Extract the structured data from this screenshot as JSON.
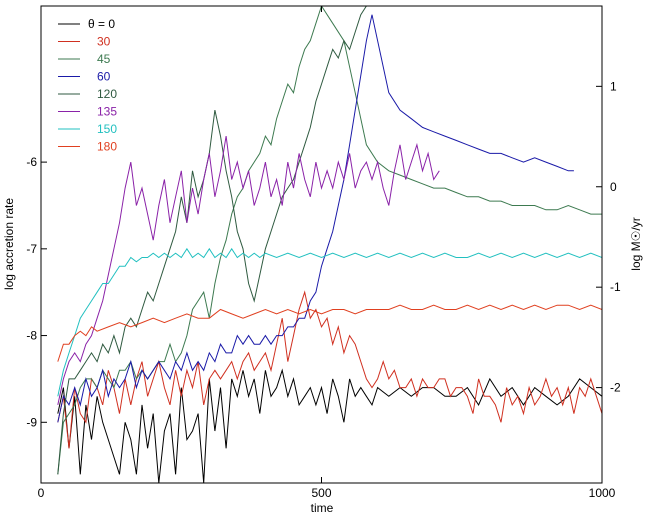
{
  "chart_data": {
    "type": "line",
    "xlabel": "time",
    "ylabel_left": "log accretion rate",
    "ylabel_right": "log M☉/yr",
    "xlim": [
      0,
      1000
    ],
    "ylim": [
      -9.7,
      -4.2
    ],
    "ylim_right": [
      -2.95,
      1.8
    ],
    "x_ticks": [
      0,
      500,
      1000
    ],
    "y_ticks": [
      -9,
      -8,
      -7,
      -6
    ],
    "y_ticks_right": [
      -2,
      -1,
      0,
      1
    ],
    "grid": false,
    "legend_position": "top-left",
    "legend_title": "θ = 0",
    "series": [
      {
        "name": "θ = 0",
        "color": "#000000",
        "x": [
          30,
          40,
          50,
          60,
          70,
          80,
          90,
          100,
          110,
          120,
          130,
          140,
          150,
          160,
          170,
          180,
          190,
          200,
          210,
          220,
          230,
          240,
          250,
          260,
          270,
          280,
          290,
          300,
          310,
          320,
          330,
          340,
          350,
          360,
          370,
          380,
          390,
          400,
          410,
          420,
          430,
          440,
          450,
          460,
          470,
          480,
          490,
          500,
          510,
          520,
          530,
          540,
          550,
          560,
          570,
          580,
          590,
          600,
          620,
          640,
          660,
          680,
          700,
          720,
          740,
          760,
          780,
          800,
          820,
          840,
          860,
          880,
          900,
          920,
          940,
          960,
          980,
          1000
        ],
        "values": [
          -8.9,
          -8.6,
          -9.3,
          -8.7,
          -9.6,
          -8.8,
          -9.2,
          -8.7,
          -9.0,
          -9.2,
          -9.4,
          -9.6,
          -9.0,
          -9.2,
          -9.6,
          -8.8,
          -9.3,
          -8.9,
          -9.7,
          -9.1,
          -8.9,
          -9.6,
          -8.6,
          -9.2,
          -9.1,
          -8.9,
          -9.7,
          -8.5,
          -9.1,
          -8.6,
          -9.3,
          -8.5,
          -8.7,
          -8.4,
          -8.7,
          -8.5,
          -8.9,
          -8.4,
          -8.7,
          -8.6,
          -8.4,
          -8.7,
          -8.5,
          -8.8,
          -8.7,
          -8.6,
          -8.8,
          -8.6,
          -8.9,
          -8.5,
          -8.7,
          -9.0,
          -8.5,
          -8.7,
          -8.6,
          -8.7,
          -8.8,
          -8.6,
          -8.7,
          -8.6,
          -8.7,
          -8.6,
          -8.6,
          -8.7,
          -8.7,
          -8.6,
          -8.8,
          -8.5,
          -8.7,
          -8.6,
          -8.8,
          -8.6,
          -8.7,
          -8.8,
          -8.7,
          -8.5,
          -8.6,
          -8.7
        ]
      },
      {
        "name": "30",
        "color": "#d03020",
        "x": [
          30,
          40,
          50,
          60,
          70,
          80,
          90,
          100,
          110,
          120,
          130,
          140,
          150,
          160,
          170,
          180,
          190,
          200,
          210,
          220,
          230,
          240,
          250,
          260,
          270,
          280,
          290,
          300,
          310,
          320,
          330,
          340,
          350,
          360,
          370,
          380,
          390,
          400,
          410,
          420,
          430,
          440,
          450,
          460,
          470,
          480,
          490,
          500,
          510,
          520,
          530,
          540,
          550,
          560,
          570,
          580,
          590,
          600,
          610,
          620,
          630,
          640,
          650,
          660,
          670,
          680,
          690,
          700,
          710,
          720,
          730,
          740,
          750,
          760,
          770,
          780,
          790,
          800,
          810,
          820,
          830,
          840,
          850,
          860,
          870,
          880,
          890,
          900,
          910,
          920,
          930,
          940,
          950,
          960,
          970,
          980,
          990,
          1000
        ],
        "values": [
          -9.0,
          -8.7,
          -9.3,
          -8.6,
          -8.9,
          -9.0,
          -8.5,
          -8.6,
          -8.8,
          -8.4,
          -8.6,
          -8.9,
          -8.5,
          -8.8,
          -8.5,
          -8.3,
          -8.7,
          -8.5,
          -8.3,
          -8.6,
          -8.8,
          -8.4,
          -8.7,
          -8.4,
          -8.6,
          -8.3,
          -8.8,
          -8.5,
          -8.4,
          -8.5,
          -8.4,
          -8.3,
          -8.5,
          -8.3,
          -8.2,
          -8.4,
          -8.3,
          -8.2,
          -8.4,
          -8.1,
          -7.8,
          -8.3,
          -8.0,
          -7.7,
          -7.5,
          -7.8,
          -7.7,
          -7.9,
          -7.8,
          -8.1,
          -7.9,
          -8.2,
          -8.0,
          -8.1,
          -8.3,
          -8.5,
          -8.6,
          -8.5,
          -8.3,
          -8.5,
          -8.4,
          -8.6,
          -8.6,
          -8.5,
          -8.7,
          -8.5,
          -8.6,
          -8.6,
          -8.5,
          -8.5,
          -8.7,
          -8.6,
          -8.6,
          -8.7,
          -8.9,
          -8.5,
          -8.7,
          -8.7,
          -8.8,
          -9.0,
          -8.6,
          -8.8,
          -8.7,
          -8.9,
          -8.6,
          -8.8,
          -8.7,
          -8.5,
          -8.7,
          -8.6,
          -8.8,
          -8.6,
          -8.9,
          -8.6,
          -8.7,
          -8.5,
          -8.7,
          -8.9
        ]
      },
      {
        "name": "45",
        "color": "#3d7a50",
        "x": [
          30,
          40,
          50,
          60,
          70,
          80,
          90,
          100,
          110,
          120,
          130,
          140,
          150,
          160,
          170,
          180,
          190,
          200,
          210,
          220,
          230,
          240,
          250,
          260,
          270,
          280,
          290,
          300,
          310,
          320,
          330,
          340,
          350,
          360,
          370,
          380,
          390,
          400,
          410,
          420,
          430,
          440,
          450,
          460,
          470,
          480,
          490,
          500,
          520,
          540,
          560,
          580,
          600,
          620,
          640,
          660,
          680,
          700,
          720,
          740,
          760,
          780,
          800,
          820,
          840,
          860,
          880,
          900,
          920,
          940,
          960,
          980,
          1000
        ],
        "values": [
          -9.6,
          -9.0,
          -8.9,
          -8.8,
          -8.6,
          -8.5,
          -8.5,
          -8.6,
          -8.4,
          -8.5,
          -8.6,
          -8.4,
          -8.4,
          -8.3,
          -8.5,
          -8.4,
          -8.5,
          -8.4,
          -8.3,
          -8.3,
          -8.1,
          -8.3,
          -8.2,
          -8.0,
          -7.7,
          -7.6,
          -7.5,
          -7.8,
          -7.4,
          -7.1,
          -6.9,
          -6.6,
          -6.4,
          -6.3,
          -6.1,
          -6.0,
          -5.9,
          -5.7,
          -5.8,
          -5.5,
          -5.3,
          -5.1,
          -5.2,
          -4.9,
          -4.7,
          -4.6,
          -4.4,
          -4.2,
          -4.4,
          -4.6,
          -5.2,
          -5.8,
          -6.0,
          -6.1,
          -6.15,
          -6.2,
          -6.25,
          -6.3,
          -6.3,
          -6.35,
          -6.4,
          -6.4,
          -6.45,
          -6.45,
          -6.5,
          -6.5,
          -6.5,
          -6.55,
          -6.55,
          -6.5,
          -6.55,
          -6.6,
          -6.6
        ]
      },
      {
        "name": "60",
        "color": "#1a1aa8",
        "x": [
          30,
          40,
          50,
          60,
          70,
          80,
          90,
          100,
          110,
          120,
          130,
          140,
          150,
          160,
          170,
          180,
          190,
          200,
          210,
          220,
          230,
          240,
          250,
          260,
          270,
          280,
          290,
          300,
          310,
          320,
          330,
          340,
          350,
          360,
          370,
          380,
          390,
          400,
          410,
          420,
          430,
          440,
          450,
          460,
          470,
          480,
          490,
          500,
          510,
          520,
          530,
          540,
          550,
          560,
          570,
          580,
          590,
          600,
          620,
          640,
          660,
          680,
          700,
          720,
          740,
          760,
          780,
          800,
          820,
          840,
          860,
          880,
          900,
          920,
          940,
          950
        ],
        "values": [
          -9.0,
          -8.7,
          -8.8,
          -8.6,
          -8.8,
          -8.5,
          -8.7,
          -8.6,
          -8.4,
          -8.7,
          -8.5,
          -8.6,
          -8.5,
          -8.3,
          -8.6,
          -8.4,
          -8.5,
          -8.4,
          -8.3,
          -8.4,
          -8.5,
          -8.3,
          -8.4,
          -8.2,
          -8.4,
          -8.3,
          -8.4,
          -8.2,
          -8.3,
          -8.1,
          -8.2,
          -8.2,
          -8.0,
          -8.1,
          -8.0,
          -8.1,
          -8.1,
          -8.0,
          -8.1,
          -8.0,
          -8.0,
          -7.9,
          -7.9,
          -7.8,
          -7.8,
          -7.6,
          -7.5,
          -7.2,
          -7.0,
          -6.8,
          -6.5,
          -6.2,
          -5.8,
          -5.4,
          -5.0,
          -4.6,
          -4.3,
          -4.6,
          -5.2,
          -5.4,
          -5.5,
          -5.6,
          -5.65,
          -5.7,
          -5.75,
          -5.8,
          -5.85,
          -5.9,
          -5.9,
          -5.95,
          -6.0,
          -5.95,
          -6.0,
          -6.05,
          -6.1,
          -6.1
        ]
      },
      {
        "name": "120",
        "color": "#2f5a40",
        "x": [
          30,
          40,
          50,
          60,
          70,
          80,
          90,
          100,
          110,
          120,
          130,
          140,
          150,
          160,
          170,
          180,
          190,
          200,
          210,
          220,
          230,
          240,
          250,
          260,
          270,
          280,
          290,
          300,
          310,
          320,
          330,
          340,
          350,
          360,
          370,
          380,
          390,
          400,
          410,
          420,
          430,
          440,
          450,
          460,
          470,
          480,
          490,
          500,
          510,
          520,
          530,
          540,
          550,
          560,
          570,
          580,
          590,
          600
        ],
        "values": [
          -9.6,
          -8.9,
          -8.5,
          -8.5,
          -8.4,
          -8.3,
          -8.2,
          -8.3,
          -8.1,
          -8.2,
          -8.0,
          -8.2,
          -7.9,
          -7.8,
          -7.9,
          -7.7,
          -7.5,
          -7.6,
          -7.4,
          -7.2,
          -7.0,
          -6.8,
          -6.4,
          -6.7,
          -6.1,
          -6.4,
          -6.2,
          -5.9,
          -5.4,
          -5.7,
          -6.1,
          -6.4,
          -6.8,
          -7.0,
          -7.4,
          -7.6,
          -7.3,
          -7.0,
          -6.8,
          -6.6,
          -6.4,
          -6.3,
          -6.2,
          -6.0,
          -5.8,
          -5.6,
          -5.3,
          -5.1,
          -4.9,
          -4.7,
          -4.8,
          -4.6,
          -4.7,
          -4.5,
          -4.3,
          -4.2,
          -4.1,
          -4.2
        ]
      },
      {
        "name": "135",
        "color": "#8a22a8",
        "x": [
          30,
          40,
          50,
          60,
          70,
          80,
          90,
          100,
          110,
          120,
          130,
          140,
          150,
          160,
          170,
          180,
          190,
          200,
          210,
          220,
          230,
          240,
          250,
          260,
          270,
          280,
          290,
          300,
          310,
          320,
          330,
          340,
          350,
          360,
          370,
          380,
          390,
          400,
          410,
          420,
          430,
          440,
          450,
          460,
          470,
          480,
          490,
          500,
          510,
          520,
          530,
          540,
          550,
          560,
          570,
          580,
          590,
          600,
          610,
          620,
          630,
          640,
          650,
          660,
          670,
          680,
          690,
          700,
          710
        ],
        "values": [
          -8.8,
          -8.5,
          -8.3,
          -8.2,
          -8.3,
          -8.1,
          -8.0,
          -7.8,
          -7.6,
          -7.3,
          -7.0,
          -6.7,
          -6.3,
          -6.0,
          -6.5,
          -6.3,
          -6.6,
          -6.9,
          -6.5,
          -6.2,
          -6.7,
          -6.4,
          -6.1,
          -6.7,
          -6.3,
          -6.6,
          -6.2,
          -5.9,
          -6.4,
          -6.1,
          -5.7,
          -6.2,
          -6.0,
          -6.3,
          -6.1,
          -6.5,
          -6.3,
          -6.0,
          -6.4,
          -6.2,
          -6.5,
          -6.0,
          -6.3,
          -5.9,
          -6.2,
          -6.4,
          -6.0,
          -6.3,
          -6.1,
          -6.3,
          -6.0,
          -6.2,
          -5.9,
          -6.3,
          -6.1,
          -6.0,
          -6.2,
          -6.0,
          -6.3,
          -6.5,
          -6.1,
          -5.8,
          -6.2,
          -6.0,
          -5.8,
          -6.1,
          -5.9,
          -6.2,
          -6.1
        ]
      },
      {
        "name": "150",
        "color": "#22c0c0",
        "x": [
          30,
          40,
          50,
          60,
          70,
          80,
          90,
          100,
          110,
          120,
          130,
          140,
          150,
          160,
          170,
          180,
          190,
          200,
          210,
          220,
          230,
          240,
          250,
          260,
          270,
          280,
          290,
          300,
          310,
          320,
          330,
          340,
          350,
          360,
          370,
          380,
          390,
          400,
          420,
          440,
          460,
          480,
          500,
          520,
          540,
          560,
          580,
          600,
          620,
          640,
          660,
          680,
          700,
          720,
          740,
          760,
          780,
          800,
          820,
          840,
          860,
          880,
          900,
          920,
          940,
          960,
          980,
          1000
        ],
        "values": [
          -8.7,
          -8.4,
          -8.2,
          -8.0,
          -7.8,
          -7.7,
          -7.6,
          -7.5,
          -7.4,
          -7.4,
          -7.3,
          -7.2,
          -7.2,
          -7.1,
          -7.15,
          -7.1,
          -7.1,
          -7.05,
          -7.1,
          -7.05,
          -7.1,
          -7.05,
          -7.1,
          -7.0,
          -7.1,
          -7.05,
          -7.1,
          -7.0,
          -7.1,
          -7.05,
          -7.1,
          -7.0,
          -7.1,
          -7.05,
          -7.1,
          -7.05,
          -7.1,
          -7.05,
          -7.1,
          -7.05,
          -7.1,
          -7.05,
          -7.1,
          -7.05,
          -7.1,
          -7.05,
          -7.1,
          -7.05,
          -7.1,
          -7.05,
          -7.1,
          -7.05,
          -7.1,
          -7.05,
          -7.1,
          -7.1,
          -7.05,
          -7.1,
          -7.05,
          -7.1,
          -7.05,
          -7.1,
          -7.05,
          -7.1,
          -7.05,
          -7.1,
          -7.05,
          -7.1
        ]
      },
      {
        "name": "180",
        "color": "#e04020",
        "x": [
          30,
          40,
          50,
          60,
          70,
          80,
          90,
          100,
          120,
          140,
          160,
          180,
          200,
          220,
          240,
          260,
          280,
          300,
          320,
          340,
          360,
          380,
          400,
          420,
          440,
          460,
          480,
          500,
          520,
          540,
          560,
          580,
          600,
          620,
          640,
          660,
          680,
          700,
          720,
          740,
          760,
          780,
          800,
          820,
          840,
          860,
          880,
          900,
          920,
          940,
          960,
          980,
          1000
        ],
        "values": [
          -8.3,
          -8.1,
          -8.1,
          -8.0,
          -7.95,
          -8.0,
          -7.9,
          -7.95,
          -7.9,
          -7.85,
          -7.9,
          -7.85,
          -7.8,
          -7.85,
          -7.8,
          -7.75,
          -7.8,
          -7.8,
          -7.7,
          -7.75,
          -7.8,
          -7.75,
          -7.7,
          -7.75,
          -7.7,
          -7.75,
          -7.7,
          -7.75,
          -7.7,
          -7.7,
          -7.75,
          -7.7,
          -7.7,
          -7.7,
          -7.65,
          -7.7,
          -7.7,
          -7.65,
          -7.7,
          -7.7,
          -7.65,
          -7.7,
          -7.65,
          -7.7,
          -7.65,
          -7.7,
          -7.65,
          -7.7,
          -7.65,
          -7.65,
          -7.7,
          -7.65,
          -7.7
        ]
      }
    ]
  }
}
